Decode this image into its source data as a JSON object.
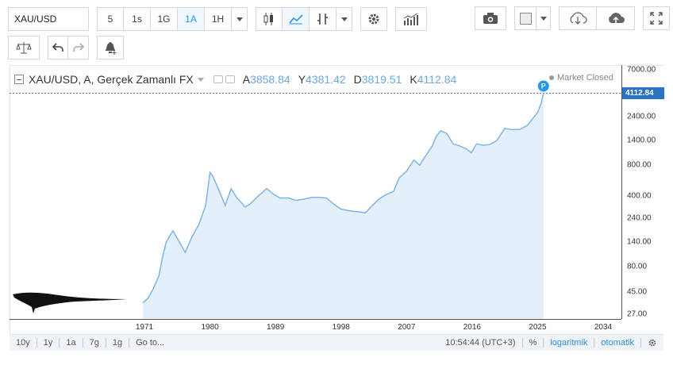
{
  "toolbar": {
    "symbol": "XAU/USD",
    "intervals": [
      "5",
      "1s",
      "1G",
      "1A",
      "1H"
    ],
    "active_interval": "1A",
    "icons": [
      "candles-icon",
      "line-chart-icon",
      "indicators-icon",
      "settings-icon",
      "bar-chart-icon",
      "camera-icon",
      "color-swatch-icon",
      "cloud-download-icon",
      "cloud-upload-icon",
      "fullscreen-icon",
      "compare-icon",
      "undo-icon",
      "redo-icon",
      "alert-icon"
    ]
  },
  "legend": {
    "title": "XAU/USD, A, Gerçek Zamanlı FX",
    "o_label": "A",
    "o_value": "3858.84",
    "h_label": "Y",
    "h_value": "4381.42",
    "l_label": "D",
    "l_value": "3819.51",
    "c_label": "K",
    "c_value": "4112.84",
    "market_status": "Market Closed"
  },
  "price_axis": {
    "ticks": [
      "7000.00",
      "2400.00",
      "1400.00",
      "800.00",
      "400.00",
      "240.00",
      "140.00",
      "80.00",
      "45.00",
      "27.00"
    ],
    "last_price": "4112.84",
    "last_price_marker": "P"
  },
  "time_axis": {
    "ticks": [
      "1971",
      "1980",
      "1989",
      "1998",
      "2007",
      "2016",
      "2025",
      "2034"
    ]
  },
  "bottombar": {
    "ranges": [
      "10y",
      "1y",
      "1a",
      "7g",
      "1g"
    ],
    "goto": "Go to...",
    "clock": "10:54:44 (UTC+3)",
    "percent": "%",
    "log": "logaritmik",
    "auto": "otomatik"
  },
  "colors": {
    "line": "#7fb4e6",
    "area": "#e3f0fa",
    "accent": "#2196f3",
    "price_tag": "#2a72c2"
  },
  "chart_data": {
    "type": "area",
    "yscale": "log",
    "ylim": [
      27,
      7000
    ],
    "x": [
      1970.8,
      1971.5,
      1972.2,
      1973.0,
      1973.5,
      1974.0,
      1974.9,
      1975.8,
      1976.6,
      1977.5,
      1978.5,
      1979.4,
      1980.0,
      1980.4,
      1981.3,
      1982.1,
      1982.9,
      1983.6,
      1984.8,
      1985.5,
      1986.5,
      1987.8,
      1988.6,
      1989.6,
      1990.8,
      1991.8,
      1993.0,
      1994.0,
      1995.0,
      1996.0,
      1997.0,
      1998.0,
      1999.0,
      1999.8,
      2000.8,
      2001.3,
      2002.3,
      2003.2,
      2004.2,
      2005.2,
      2006.0,
      2007.0,
      2008.0,
      2008.8,
      2009.5,
      2010.5,
      2011.1,
      2011.7,
      2012.5,
      2013.4,
      2014.2,
      2015.3,
      2015.9,
      2016.6,
      2017.5,
      2018.4,
      2019.4,
      2020.5,
      2021.3,
      2022.5,
      2023.6,
      2024.3,
      2025.0,
      2025.5,
      2025.8
    ],
    "y": [
      35,
      39,
      48,
      65,
      100,
      140,
      180,
      140,
      110,
      155,
      210,
      320,
      680,
      620,
      440,
      320,
      470,
      390,
      310,
      330,
      390,
      470,
      420,
      380,
      380,
      360,
      370,
      385,
      385,
      380,
      330,
      295,
      285,
      280,
      275,
      270,
      320,
      370,
      410,
      440,
      600,
      700,
      900,
      800,
      960,
      1230,
      1550,
      1750,
      1650,
      1300,
      1250,
      1150,
      1060,
      1300,
      1260,
      1280,
      1400,
      1850,
      1800,
      1800,
      1980,
      2300,
      2650,
      3300,
      4112.84
    ]
  }
}
